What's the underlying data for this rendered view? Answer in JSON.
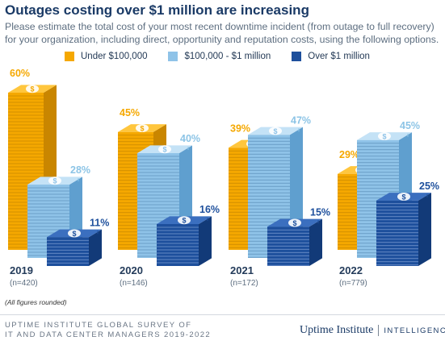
{
  "title": "Outages costing over $1 million are increasing",
  "subtitle": "Please estimate the total cost of your most recent downtime incident (from outage to full recovery) for your organization, including direct, opportunity and reputation costs, using the following options.",
  "colors": {
    "series1": "#f5a800",
    "series2": "#8fc3e8",
    "series3": "#1d4f9c",
    "label2": "#8cc4e6"
  },
  "chart_data": {
    "type": "bar",
    "categories": [
      "2019",
      "2020",
      "2021",
      "2022"
    ],
    "sample_sizes": [
      "(n=420)",
      "(n=146)",
      "(n=172)",
      "(n=779)"
    ],
    "series": [
      {
        "name": "Under $100,000",
        "values": [
          60,
          45,
          39,
          29
        ],
        "labels": [
          "60%",
          "45%",
          "39%",
          "29%"
        ]
      },
      {
        "name": "$100,000 - $1 million",
        "values": [
          28,
          40,
          47,
          45
        ],
        "labels": [
          "28%",
          "40%",
          "47%",
          "45%"
        ]
      },
      {
        "name": "Over $1 million",
        "values": [
          11,
          16,
          15,
          25
        ],
        "labels": [
          "11%",
          "16%",
          "15%",
          "25%"
        ]
      }
    ],
    "unit": "%",
    "ylim": [
      0,
      60
    ],
    "legend_position": "top",
    "grid": false
  },
  "footnote": "(All figures rounded)",
  "source_line1": "UPTIME INSTITUTE GLOBAL SURVEY OF",
  "source_line2": "IT AND DATA CENTER MANAGERS 2019-2022",
  "brand": {
    "name": "Uptime Institute",
    "sub": "INTELLIGENCE"
  }
}
